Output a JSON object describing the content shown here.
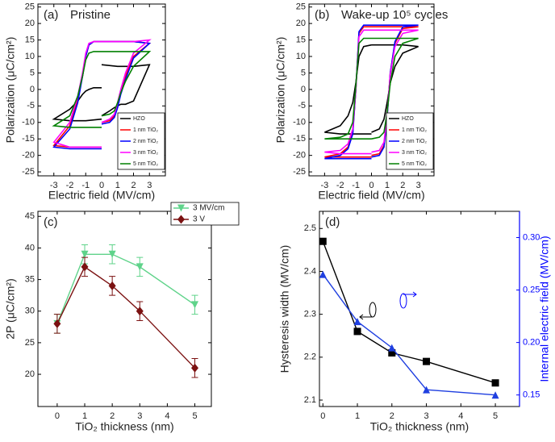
{
  "chart_data": [
    {
      "type": "line",
      "panel_label": "(a)",
      "title": "Pristine",
      "x_label": "Electric field (MV/cm)",
      "y_label": "Polarization (μC/cm²)",
      "xlim": [
        -4,
        4
      ],
      "ylim": [
        -26.2,
        25.9
      ],
      "xticks": [
        -3,
        -2,
        -1,
        0,
        1,
        2,
        3
      ],
      "yticks": [
        -25,
        -20,
        -15,
        -10,
        -5,
        0,
        5,
        10,
        15,
        20,
        25
      ],
      "legend": "lower right",
      "x": [
        0,
        -0.5,
        -0.8,
        -1,
        -1.2,
        -1.5,
        -2,
        -3,
        -2,
        -1,
        0,
        null,
        0,
        0.5,
        0.8,
        1,
        1.2,
        1.5,
        2,
        3,
        2,
        1,
        0
      ],
      "series": [
        {
          "name": "HZO",
          "color": "#000000",
          "values": [
            0.5,
            0.5,
            0,
            -0.5,
            -1.5,
            -3.5,
            -6,
            -9,
            -9.5,
            -9.5,
            -9,
            null,
            -8,
            -6.5,
            -5.5,
            -5,
            -4.5,
            -4.5,
            -3.5,
            7.5,
            7,
            7,
            7.5
          ]
        },
        {
          "name": "1 nm TiO₂",
          "color": "#ff0000",
          "values": [
            14.5,
            14.5,
            13.5,
            10,
            4,
            -3,
            -11,
            -17,
            -17.5,
            -17.5,
            -17.5,
            null,
            -10,
            -9.5,
            -8,
            -5,
            -1,
            4,
            10,
            14,
            14.5,
            14.5,
            14.5
          ]
        },
        {
          "name": "2 nm TiO₂",
          "color": "#0000ff",
          "values": [
            14.5,
            14.5,
            13.5,
            10,
            4,
            -4,
            -12,
            -17.5,
            -18,
            -18,
            -18,
            null,
            -10.5,
            -10,
            -8.5,
            -5.5,
            -1.5,
            3,
            9.5,
            14,
            14.5,
            14.5,
            14.5
          ]
        },
        {
          "name": "3 nm TiO₂",
          "color": "#ff00ff",
          "values": [
            14.5,
            14.5,
            14,
            11,
            5,
            -2,
            -10,
            -16,
            -17.5,
            -17.5,
            -17.5,
            null,
            -10,
            -9,
            -7.5,
            -4,
            0,
            5,
            11,
            15,
            14.5,
            14.5,
            14.5
          ]
        },
        {
          "name": "5 nm TiO₂",
          "color": "#008000",
          "values": [
            11.5,
            11.5,
            11,
            9,
            4,
            -2,
            -8,
            -11,
            -11.5,
            -11.5,
            -11.5,
            null,
            -8,
            -7.5,
            -6.5,
            -4,
            -1,
            2.5,
            7,
            11.5,
            11.5,
            11.5,
            11.5
          ]
        }
      ]
    },
    {
      "type": "line",
      "panel_label": "(b)",
      "title": "Wake-up 10⁵ cycles",
      "x_label": "Electric field (MV/cm)",
      "y_label": "Polarization (μC/cm²)",
      "xlim": [
        -4,
        4
      ],
      "ylim": [
        -26.2,
        25.9
      ],
      "xticks": [
        -3,
        -2,
        -1,
        0,
        1,
        2,
        3
      ],
      "yticks": [
        -25,
        -20,
        -15,
        -10,
        -5,
        0,
        5,
        10,
        15,
        20,
        25
      ],
      "legend": "lower right",
      "x": [
        0,
        -0.5,
        -0.8,
        -1,
        -1.2,
        -1.5,
        -2,
        -3,
        -2,
        -1,
        0,
        null,
        0,
        0.5,
        0.8,
        1,
        1.2,
        1.5,
        2,
        3,
        2,
        1,
        0
      ],
      "series": [
        {
          "name": "HZO",
          "color": "#000000",
          "values": [
            13.5,
            13,
            10,
            2,
            -4,
            -8,
            -11,
            -13,
            -13.5,
            -13.5,
            -13.5,
            null,
            -13,
            -12,
            -9,
            -4,
            2,
            7,
            11,
            13,
            13.5,
            13.5,
            13.5
          ]
        },
        {
          "name": "1 nm TiO₂",
          "color": "#ff0000",
          "values": [
            19,
            19,
            17,
            0,
            -13,
            -17.5,
            -19.5,
            -20.5,
            -20.5,
            -20.5,
            -20.5,
            null,
            -20,
            -19.5,
            -17,
            -8,
            5,
            14,
            18.5,
            19,
            19,
            19,
            19
          ]
        },
        {
          "name": "2 nm TiO₂",
          "color": "#0000ff",
          "values": [
            19.5,
            19.5,
            17.5,
            0,
            -13.5,
            -18,
            -20,
            -21,
            -21,
            -21,
            -21,
            null,
            -20.5,
            -20,
            -17.5,
            -8.5,
            5,
            14.5,
            19,
            19.5,
            19.5,
            19.5,
            19.5
          ]
        },
        {
          "name": "3 nm TiO₂",
          "color": "#ff00ff",
          "values": [
            18,
            18,
            16,
            0,
            -12,
            -16.5,
            -18.5,
            -19,
            -19.5,
            -19.5,
            -19.5,
            null,
            -19,
            -18.5,
            -16,
            -7.5,
            4.5,
            13,
            17,
            18,
            18,
            18,
            18
          ]
        },
        {
          "name": "5 nm TiO₂",
          "color": "#008000",
          "values": [
            15.5,
            15.5,
            14,
            1,
            -10,
            -13.5,
            -14.5,
            -15,
            -15,
            -15,
            -15,
            null,
            -15,
            -14.5,
            -13,
            -7,
            2,
            10,
            14,
            15.5,
            15.5,
            15.5,
            15.5
          ]
        }
      ]
    },
    {
      "type": "line",
      "panel_label": "(c)",
      "x_label": "TiO₂ thickness (nm)",
      "y_label": "2P (μC/cm²)",
      "xlim": [
        -0.7,
        5.6
      ],
      "ylim": [
        14.9,
        45.8
      ],
      "xticks": [
        0,
        1,
        2,
        3,
        4,
        5
      ],
      "yticks": [
        20,
        25,
        30,
        35,
        40,
        45
      ],
      "legend": "upper right",
      "x": [
        0,
        1,
        2,
        3,
        5
      ],
      "series": [
        {
          "name": "3 MV/cm",
          "color": "#5fd38a",
          "marker": "triangle-down",
          "values": [
            28,
            39,
            39,
            37,
            31
          ],
          "errors": [
            1.5,
            1.5,
            1.5,
            1.5,
            1.5
          ]
        },
        {
          "name": "3 V",
          "color": "#7b1111",
          "marker": "diamond",
          "values": [
            28,
            37,
            34,
            30,
            21
          ],
          "errors": [
            1.5,
            1.5,
            1.5,
            1.5,
            1.5
          ]
        }
      ]
    },
    {
      "type": "line",
      "panel_label": "(d)",
      "x_label": "TiO₂ thickness (nm)",
      "y_label": "Hysteresis width (MV/cm)",
      "y2_label": "Internal electric field (MV/cm)",
      "xlim": [
        -0.1,
        5.7
      ],
      "ylim": [
        2.085,
        2.54
      ],
      "y2lim": [
        0.139,
        0.325
      ],
      "xticks": [
        0,
        1,
        2,
        3,
        4,
        5
      ],
      "yticks": [
        2.1,
        2.2,
        2.3,
        2.4,
        2.5
      ],
      "y2ticks": [
        0.15,
        {
          "value": 0.2,
          "label": "0.20"
        },
        0.25,
        {
          "value": 0.3,
          "label": "0.30"
        }
      ],
      "y2_color": "#0000ff",
      "x": [
        0,
        1,
        2,
        3,
        5
      ],
      "series": [
        {
          "color": "#000000",
          "marker": "square",
          "values": [
            2.47,
            2.26,
            2.21,
            2.19,
            2.14
          ]
        },
        {
          "color": "#1f3fe0",
          "marker": "triangle-up",
          "axis": "y2",
          "values": [
            0.265,
            0.22,
            0.195,
            0.155,
            0.15
          ]
        }
      ]
    }
  ]
}
